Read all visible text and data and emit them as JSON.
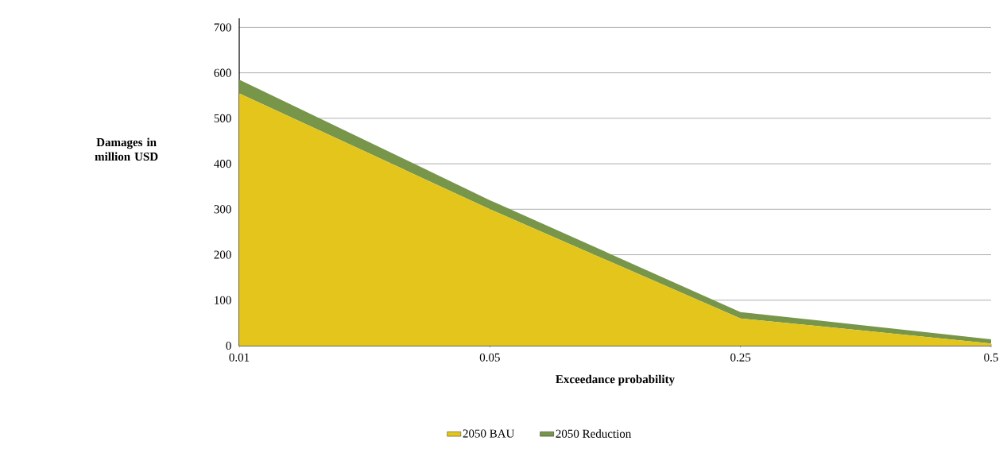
{
  "chart_data": {
    "type": "area",
    "stacked": true,
    "xlabel": "Exceedance probability",
    "ylabel": "Damages in million USD",
    "categories": [
      "0.01",
      "0.05",
      "0.25",
      "0.5"
    ],
    "series": [
      {
        "name": "2050 BAU",
        "color": "#e3c51c",
        "values": [
          555,
          300,
          60,
          5
        ]
      },
      {
        "name": "2050 Reduction",
        "color": "#77964a",
        "values": [
          30,
          20,
          14,
          9
        ]
      }
    ],
    "ylim": [
      0,
      720
    ],
    "yticks": [
      0,
      100,
      200,
      300,
      400,
      500,
      600,
      700
    ],
    "grid": "y",
    "legend": "bottom"
  }
}
